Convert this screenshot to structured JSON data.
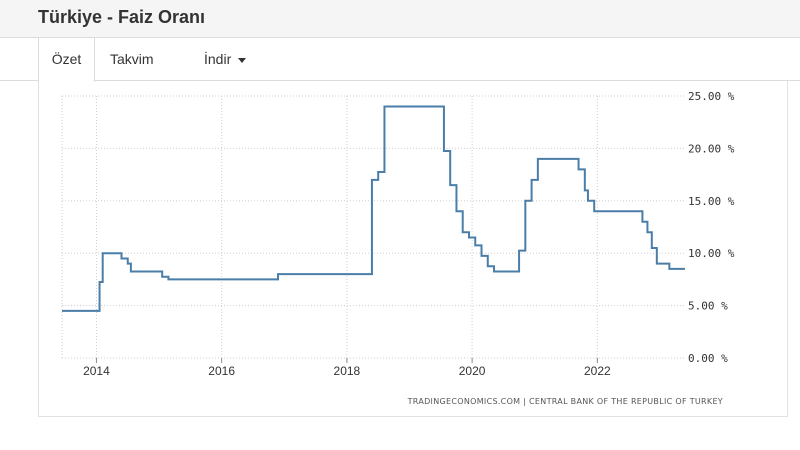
{
  "page": {
    "title": "Türkiye - Faiz Oranı"
  },
  "tabs": [
    {
      "label": "Özet",
      "active": true
    },
    {
      "label": "Takvim",
      "active": false
    },
    {
      "label": "İndir",
      "active": false,
      "dropdown": true
    }
  ],
  "chart_data": {
    "type": "line",
    "series": [
      {
        "color": "#4a7ea8",
        "step": true,
        "x": [
          2013.45,
          2014.05,
          2014.1,
          2014.4,
          2014.5,
          2014.55,
          2015.05,
          2015.15,
          2016.9,
          2018.4,
          2018.5,
          2018.6,
          2018.7,
          2019.55,
          2019.65,
          2019.75,
          2019.85,
          2019.95,
          2020.05,
          2020.15,
          2020.25,
          2020.35,
          2020.75,
          2020.85,
          2020.95,
          2021.05,
          2021.25,
          2021.7,
          2021.8,
          2021.85,
          2021.95,
          2022.65,
          2022.72,
          2022.8,
          2022.87,
          2022.95,
          2023.15,
          2023.4
        ],
        "y": [
          4.5,
          7.25,
          10.0,
          9.5,
          9.0,
          8.25,
          7.75,
          7.5,
          8.0,
          17.0,
          17.75,
          24.0,
          24.0,
          19.75,
          16.5,
          14.0,
          12.0,
          11.5,
          10.75,
          9.75,
          8.75,
          8.25,
          10.25,
          15.0,
          17.0,
          19.0,
          19.0,
          18.0,
          16.0,
          15.0,
          14.0,
          14.0,
          13.0,
          12.0,
          10.5,
          9.0,
          8.5,
          8.5
        ]
      }
    ],
    "xlim": [
      2013.45,
      2023.4
    ],
    "ylim": [
      0,
      25
    ],
    "x_ticks": [
      {
        "value": 2014,
        "label": "2014"
      },
      {
        "value": 2016,
        "label": "2016"
      },
      {
        "value": 2018,
        "label": "2018"
      },
      {
        "value": 2020,
        "label": "2020"
      },
      {
        "value": 2022,
        "label": "2022"
      }
    ],
    "y_ticks": [
      {
        "value": 25,
        "label": "25.00 %"
      },
      {
        "value": 20,
        "label": "20.00 %"
      },
      {
        "value": 15,
        "label": "15.00 %"
      },
      {
        "value": 10,
        "label": "10.00 %"
      },
      {
        "value": 5,
        "label": "5.00 %"
      },
      {
        "value": 0,
        "label": "0.00 %"
      }
    ],
    "y_axis_side": "right",
    "grid": true,
    "source_text": "TRADINGECONOMICS.COM | CENTRAL BANK OF THE REPUBLIC OF TURKEY"
  }
}
